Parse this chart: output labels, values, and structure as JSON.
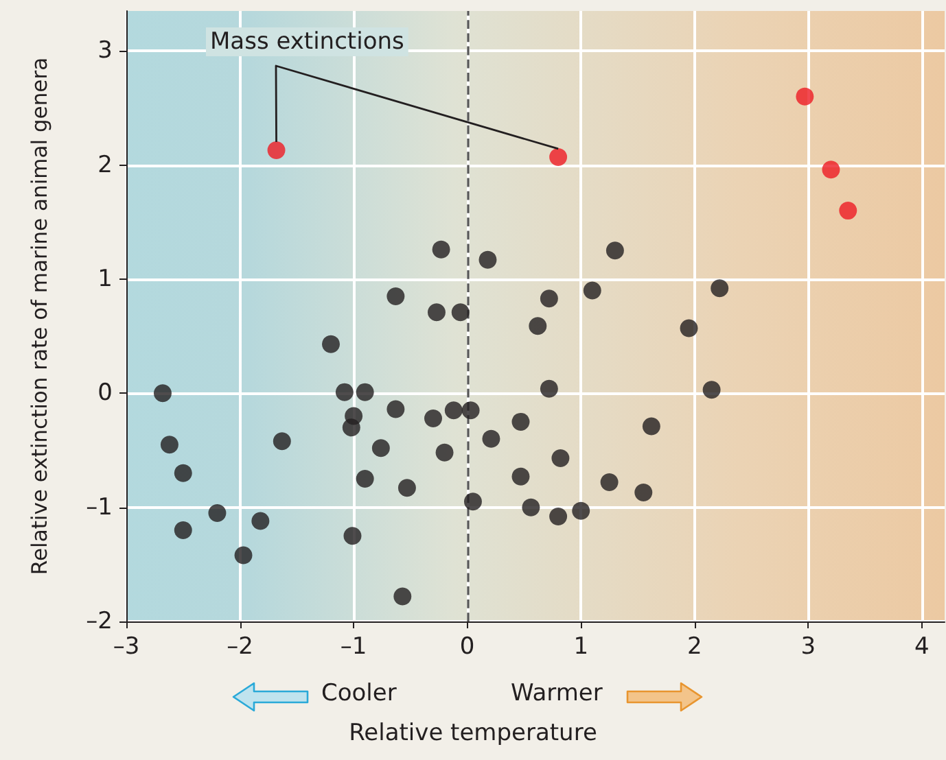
{
  "chart_data": {
    "type": "scatter",
    "xlabel": "Relative temperature",
    "ylabel": "Relative extinction rate of marine animal genera",
    "annotations": [
      "Mass extinctions",
      "Cooler",
      "Warmer"
    ],
    "xlim": [
      -3,
      4.2
    ],
    "ylim": [
      -2,
      3.35
    ],
    "xticks": [
      {
        "value": -3,
        "label": "–3"
      },
      {
        "value": -2,
        "label": "–2"
      },
      {
        "value": -1,
        "label": "–1"
      },
      0,
      1,
      2,
      3,
      4
    ],
    "yticks": [
      {
        "value": -2,
        "label": "–2"
      },
      {
        "value": -1,
        "label": "–1"
      },
      0,
      1,
      2,
      3
    ],
    "grid": true,
    "marker": "circle",
    "ref_lines": [
      {
        "axis": "x",
        "value": 0,
        "color": "#555555",
        "line_style": "dashed"
      }
    ],
    "series": [
      {
        "color": "#231f20",
        "x": [
          -2.68,
          -2.62,
          -2.5,
          -2.5,
          -2.2,
          -1.82,
          -1.97,
          -1.63,
          -1.2,
          -1.08,
          -1.0,
          -1.02,
          -0.9,
          -0.9,
          -1.01,
          -0.76,
          -0.63,
          -0.63,
          -0.57,
          -0.53,
          -0.23,
          -0.27,
          -0.06,
          -0.3,
          -0.2,
          -0.12,
          0.03,
          0.05,
          0.18,
          0.21,
          0.47,
          0.47,
          0.62,
          0.72,
          0.72,
          0.56,
          0.82,
          0.8,
          1.0,
          1.1,
          1.3,
          1.25,
          1.55,
          1.62,
          1.95,
          2.15,
          2.22
        ],
        "values": [
          0.0,
          -0.45,
          -0.7,
          -1.2,
          -1.05,
          -1.12,
          -1.42,
          -0.42,
          0.43,
          0.01,
          -0.2,
          -0.3,
          0.01,
          -0.75,
          -1.25,
          -0.48,
          0.85,
          -0.14,
          -1.78,
          -0.83,
          1.26,
          0.71,
          0.71,
          -0.22,
          -0.52,
          -0.15,
          -0.15,
          -0.95,
          1.17,
          -0.4,
          -0.25,
          -0.73,
          0.59,
          0.83,
          0.04,
          -1.0,
          -0.57,
          -1.08,
          -1.03,
          0.9,
          1.25,
          -0.78,
          -0.87,
          -0.29,
          0.57,
          0.03,
          0.92
        ]
      },
      {
        "color": "#ed1c24",
        "x": [
          -1.68,
          0.8,
          2.97,
          3.2,
          3.35
        ],
        "values": [
          2.13,
          2.07,
          2.6,
          1.96,
          1.6
        ]
      }
    ]
  }
}
